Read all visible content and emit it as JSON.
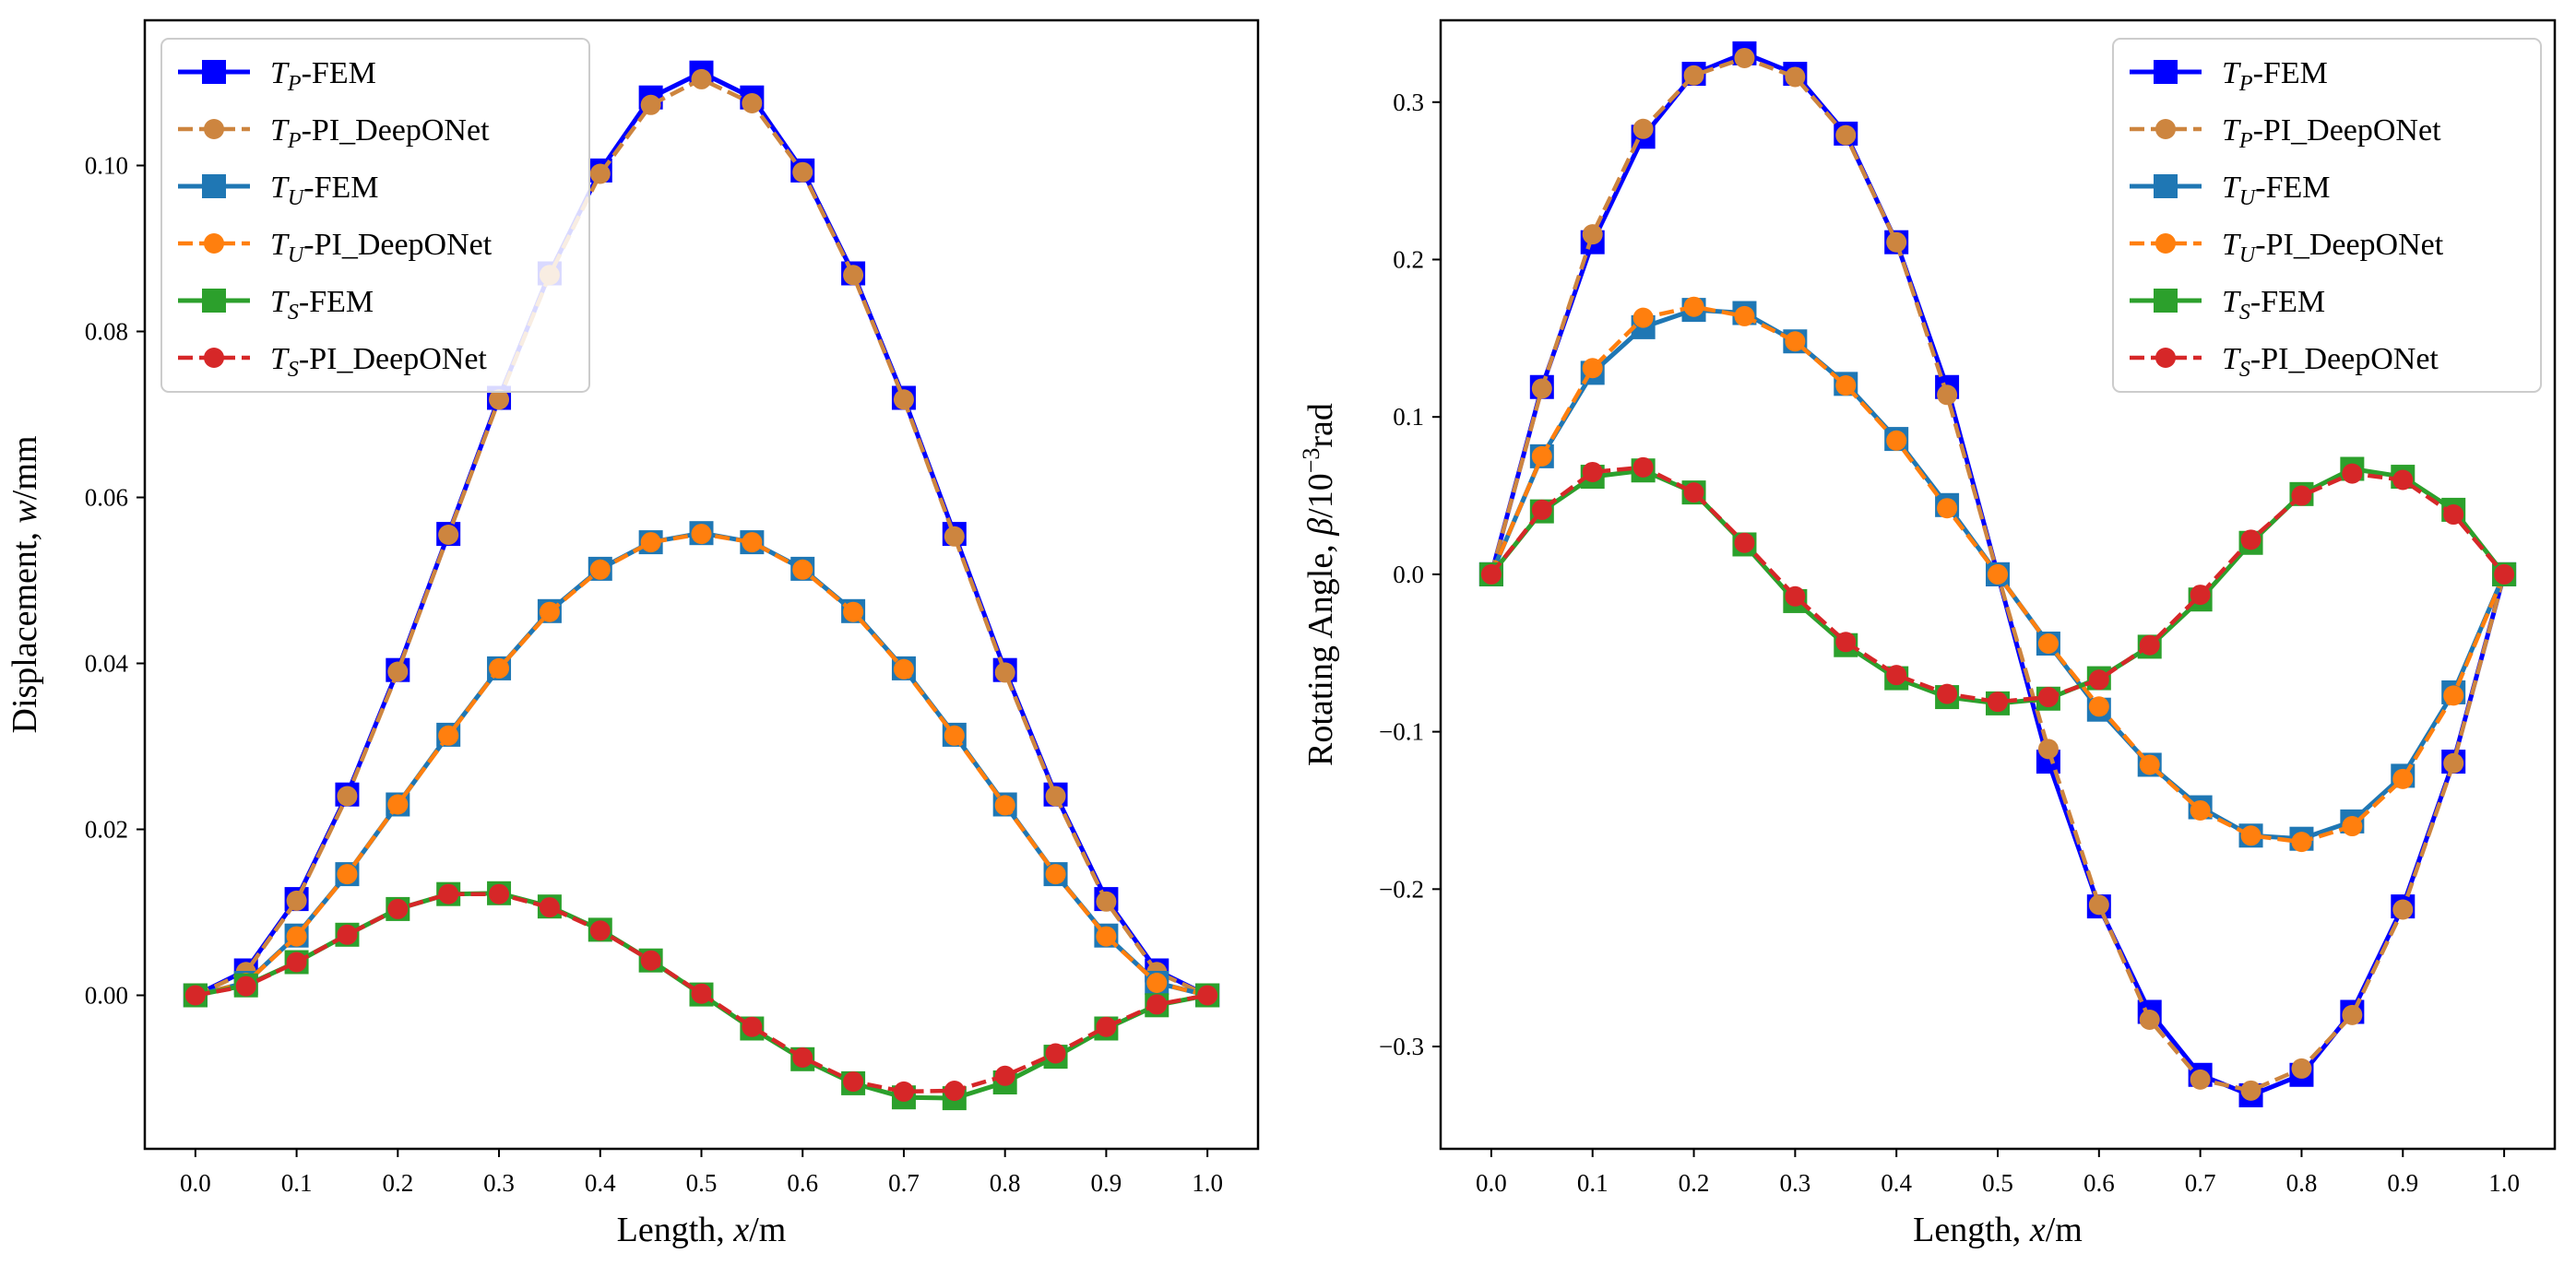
{
  "chart_data": [
    {
      "type": "line",
      "id": "displacement",
      "title": "",
      "xlabel": "Length, x/m",
      "ylabel": "Displacement, w/mm",
      "xlabel_parts": {
        "pre": "Length, ",
        "var": "x",
        "post": "/m"
      },
      "ylabel_parts": {
        "pre": "Displacement, ",
        "var": "w",
        "post": "/mm"
      },
      "xlim": [
        -0.05,
        1.05
      ],
      "ylim": [
        -0.0185,
        0.1175
      ],
      "xticks": [
        0.0,
        0.1,
        0.2,
        0.3,
        0.4,
        0.5,
        0.6,
        0.7,
        0.8,
        0.9,
        1.0
      ],
      "xtick_labels": [
        "0.0",
        "0.1",
        "0.2",
        "0.3",
        "0.4",
        "0.5",
        "0.6",
        "0.7",
        "0.8",
        "0.9",
        "1.0"
      ],
      "yticks": [
        0.0,
        0.02,
        0.04,
        0.06,
        0.08,
        0.1
      ],
      "ytick_labels": [
        "0.00",
        "0.02",
        "0.04",
        "0.06",
        "0.08",
        "0.10"
      ],
      "legend_position": "upper-left",
      "x": [
        0.0,
        0.05,
        0.1,
        0.15,
        0.2,
        0.25,
        0.3,
        0.35,
        0.4,
        0.45,
        0.5,
        0.55,
        0.6,
        0.65,
        0.7,
        0.75,
        0.8,
        0.85,
        0.9,
        0.95,
        1.0
      ],
      "series": [
        {
          "name": "T_P-FEM",
          "base": "T",
          "sub": "P",
          "suffix": "-FEM",
          "color": "#0000ff",
          "marker": "square",
          "dashed": false,
          "values": [
            0.0,
            0.003,
            0.0116,
            0.0242,
            0.0392,
            0.0556,
            0.072,
            0.087,
            0.0994,
            0.1082,
            0.1112,
            0.1082,
            0.0994,
            0.087,
            0.072,
            0.0556,
            0.0392,
            0.0242,
            0.0116,
            0.003,
            0.0
          ]
        },
        {
          "name": "T_P-PI_DeepONet",
          "base": "T",
          "sub": "P",
          "suffix": "-PI_DeepONet",
          "color": "#cd853f",
          "marker": "circle",
          "dashed": true,
          "values": [
            0.0,
            0.0028,
            0.0114,
            0.024,
            0.039,
            0.0555,
            0.0718,
            0.0868,
            0.099,
            0.1073,
            0.1104,
            0.1075,
            0.0992,
            0.0868,
            0.0718,
            0.0553,
            0.0389,
            0.024,
            0.0113,
            0.0028,
            0.0
          ]
        },
        {
          "name": "T_U-FEM",
          "base": "T",
          "sub": "U",
          "suffix": "-FEM",
          "color": "#1f77b4",
          "marker": "square",
          "dashed": false,
          "values": [
            0.0,
            0.0015,
            0.0072,
            0.0146,
            0.023,
            0.0314,
            0.0394,
            0.0463,
            0.0514,
            0.0546,
            0.0557,
            0.0546,
            0.0514,
            0.0463,
            0.0394,
            0.0314,
            0.023,
            0.0146,
            0.0072,
            0.0015,
            0.0
          ]
        },
        {
          "name": "T_U-PI_DeepONet",
          "base": "T",
          "sub": "U",
          "suffix": "-PI_DeepONet",
          "color": "#ff7f0e",
          "marker": "circle",
          "dashed": true,
          "values": [
            0.0,
            0.0015,
            0.0071,
            0.0146,
            0.023,
            0.0313,
            0.0394,
            0.0462,
            0.0513,
            0.0546,
            0.0556,
            0.0546,
            0.0513,
            0.0462,
            0.0393,
            0.0313,
            0.0229,
            0.0146,
            0.0071,
            0.0015,
            0.0
          ]
        },
        {
          "name": "T_S-FEM",
          "base": "T",
          "sub": "S",
          "suffix": "-FEM",
          "color": "#2ca02c",
          "marker": "square",
          "dashed": false,
          "values": [
            0.0,
            0.0012,
            0.004,
            0.0073,
            0.0104,
            0.0122,
            0.0123,
            0.0107,
            0.0079,
            0.0042,
            0.0001,
            -0.004,
            -0.0077,
            -0.0106,
            -0.0123,
            -0.0124,
            -0.0105,
            -0.0074,
            -0.004,
            -0.0012,
            0.0
          ]
        },
        {
          "name": "T_S-PI_DeepONet",
          "base": "T",
          "sub": "S",
          "suffix": "-PI_DeepONet",
          "color": "#d62728",
          "marker": "circle",
          "dashed": true,
          "values": [
            0.0,
            0.0011,
            0.004,
            0.0073,
            0.0104,
            0.0122,
            0.0122,
            0.0106,
            0.0078,
            0.0042,
            0.0002,
            -0.0038,
            -0.0075,
            -0.0104,
            -0.0116,
            -0.0115,
            -0.0097,
            -0.007,
            -0.0038,
            -0.0011,
            0.0
          ]
        }
      ]
    },
    {
      "type": "line",
      "id": "rotating-angle",
      "title": "",
      "xlabel": "Length, x/m",
      "ylabel": "Rotating Angle, β/10^-3 rad",
      "xlabel_parts": {
        "pre": "Length, ",
        "var": "x",
        "post": "/m"
      },
      "ylabel_parts": {
        "pre": "Rotating Angle, ",
        "var": "β",
        "post": "/10",
        "sup": "−3",
        "unit": "rad"
      },
      "xlim": [
        -0.05,
        1.05
      ],
      "ylim": [
        -0.365,
        0.352
      ],
      "xticks": [
        0.0,
        0.1,
        0.2,
        0.3,
        0.4,
        0.5,
        0.6,
        0.7,
        0.8,
        0.9,
        1.0
      ],
      "xtick_labels": [
        "0.0",
        "0.1",
        "0.2",
        "0.3",
        "0.4",
        "0.5",
        "0.6",
        "0.7",
        "0.8",
        "0.9",
        "1.0"
      ],
      "yticks": [
        -0.3,
        -0.2,
        -0.1,
        0.0,
        0.1,
        0.2,
        0.3
      ],
      "ytick_labels": [
        "−0.3",
        "−0.2",
        "−0.1",
        "0.0",
        "0.1",
        "0.2",
        "0.3"
      ],
      "legend_position": "upper-right",
      "x": [
        0.0,
        0.05,
        0.1,
        0.15,
        0.2,
        0.25,
        0.3,
        0.35,
        0.4,
        0.45,
        0.5,
        0.55,
        0.6,
        0.65,
        0.7,
        0.75,
        0.8,
        0.85,
        0.9,
        0.95,
        1.0
      ],
      "series": [
        {
          "name": "T_P-FEM",
          "base": "T",
          "sub": "P",
          "suffix": "-FEM",
          "color": "#0000ff",
          "marker": "square",
          "dashed": false,
          "values": [
            0.0,
            0.119,
            0.211,
            0.278,
            0.318,
            0.331,
            0.318,
            0.28,
            0.211,
            0.119,
            0.0,
            -0.119,
            -0.211,
            -0.278,
            -0.318,
            -0.331,
            -0.318,
            -0.278,
            -0.211,
            -0.119,
            0.0
          ]
        },
        {
          "name": "T_P-PI_DeepONet",
          "base": "T",
          "sub": "P",
          "suffix": "-PI_DeepONet",
          "color": "#cd853f",
          "marker": "circle",
          "dashed": true,
          "values": [
            0.0,
            0.118,
            0.216,
            0.283,
            0.317,
            0.328,
            0.316,
            0.279,
            0.211,
            0.114,
            0.0,
            -0.111,
            -0.21,
            -0.283,
            -0.321,
            -0.328,
            -0.314,
            -0.28,
            -0.213,
            -0.12,
            0.0
          ]
        },
        {
          "name": "T_U-FEM",
          "base": "T",
          "sub": "U",
          "suffix": "-FEM",
          "color": "#1f77b4",
          "marker": "square",
          "dashed": false,
          "values": [
            0.0,
            0.075,
            0.128,
            0.157,
            0.168,
            0.166,
            0.148,
            0.121,
            0.086,
            0.044,
            0.0,
            -0.044,
            -0.086,
            -0.121,
            -0.148,
            -0.166,
            -0.168,
            -0.157,
            -0.128,
            -0.075,
            0.0
          ]
        },
        {
          "name": "T_U-PI_DeepONet",
          "base": "T",
          "sub": "U",
          "suffix": "-PI_DeepONet",
          "color": "#ff7f0e",
          "marker": "circle",
          "dashed": true,
          "values": [
            0.0,
            0.075,
            0.131,
            0.163,
            0.17,
            0.164,
            0.148,
            0.12,
            0.085,
            0.042,
            0.0,
            -0.044,
            -0.084,
            -0.121,
            -0.15,
            -0.166,
            -0.17,
            -0.16,
            -0.13,
            -0.077,
            0.0
          ]
        },
        {
          "name": "T_S-FEM",
          "base": "T",
          "sub": "S",
          "suffix": "-FEM",
          "color": "#2ca02c",
          "marker": "square",
          "dashed": false,
          "values": [
            0.0,
            0.04,
            0.062,
            0.066,
            0.052,
            0.019,
            -0.017,
            -0.045,
            -0.066,
            -0.078,
            -0.082,
            -0.079,
            -0.066,
            -0.046,
            -0.016,
            0.02,
            0.051,
            0.067,
            0.062,
            0.041,
            0.0
          ]
        },
        {
          "name": "T_S-PI_DeepONet",
          "base": "T",
          "sub": "S",
          "suffix": "-PI_DeepONet",
          "color": "#d62728",
          "marker": "circle",
          "dashed": true,
          "values": [
            0.0,
            0.041,
            0.065,
            0.068,
            0.052,
            0.02,
            -0.014,
            -0.043,
            -0.064,
            -0.076,
            -0.081,
            -0.078,
            -0.067,
            -0.045,
            -0.013,
            0.022,
            0.05,
            0.064,
            0.06,
            0.038,
            0.0
          ]
        }
      ]
    }
  ]
}
